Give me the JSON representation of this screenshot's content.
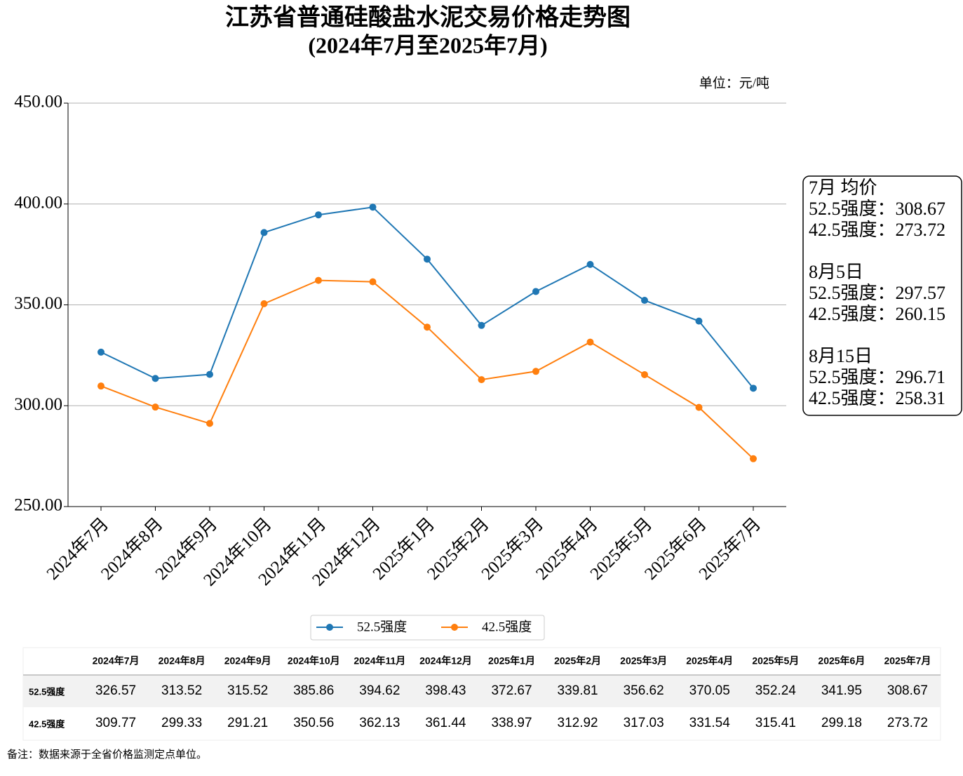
{
  "chart_data": {
    "type": "line",
    "title": "江苏省普通硅酸盐水泥交易价格走势图",
    "subtitle": "(2024年7月至2025年7月)",
    "unit_label": "单位：元/吨",
    "categories": [
      "2024年7月",
      "2024年8月",
      "2024年9月",
      "2024年10月",
      "2024年11月",
      "2024年12月",
      "2025年1月",
      "2025年2月",
      "2025年3月",
      "2025年4月",
      "2025年5月",
      "2025年6月",
      "2025年7月"
    ],
    "series": [
      {
        "name": "52.5强度",
        "color": "#1f77b4",
        "values": [
          326.57,
          313.52,
          315.52,
          385.86,
          394.62,
          398.43,
          372.67,
          339.81,
          356.62,
          370.05,
          352.24,
          341.95,
          308.67
        ]
      },
      {
        "name": "42.5强度",
        "color": "#ff7f0e",
        "values": [
          309.77,
          299.33,
          291.21,
          350.56,
          362.13,
          361.44,
          338.97,
          312.92,
          317.03,
          331.54,
          315.41,
          299.18,
          273.72
        ]
      }
    ],
    "ylim": [
      250,
      450
    ],
    "yticks": [
      {
        "value": 250,
        "label": "250.00"
      },
      {
        "value": 300,
        "label": "300.00"
      },
      {
        "value": 350,
        "label": "350.00"
      },
      {
        "value": 400,
        "label": "400.00"
      },
      {
        "value": 450,
        "label": "450.00"
      }
    ],
    "grid": true,
    "legend": "bottom",
    "annotation": [
      [
        "7月 均价",
        "52.5强度：308.67",
        "42.5强度：273.72"
      ],
      [
        "8月5日",
        "52.5强度：297.57",
        "42.5强度：260.15"
      ],
      [
        "8月15日",
        "52.5强度：296.71",
        "42.5强度：258.31"
      ]
    ],
    "note": "备注：数据来源于全省价格监测定点单位。"
  }
}
